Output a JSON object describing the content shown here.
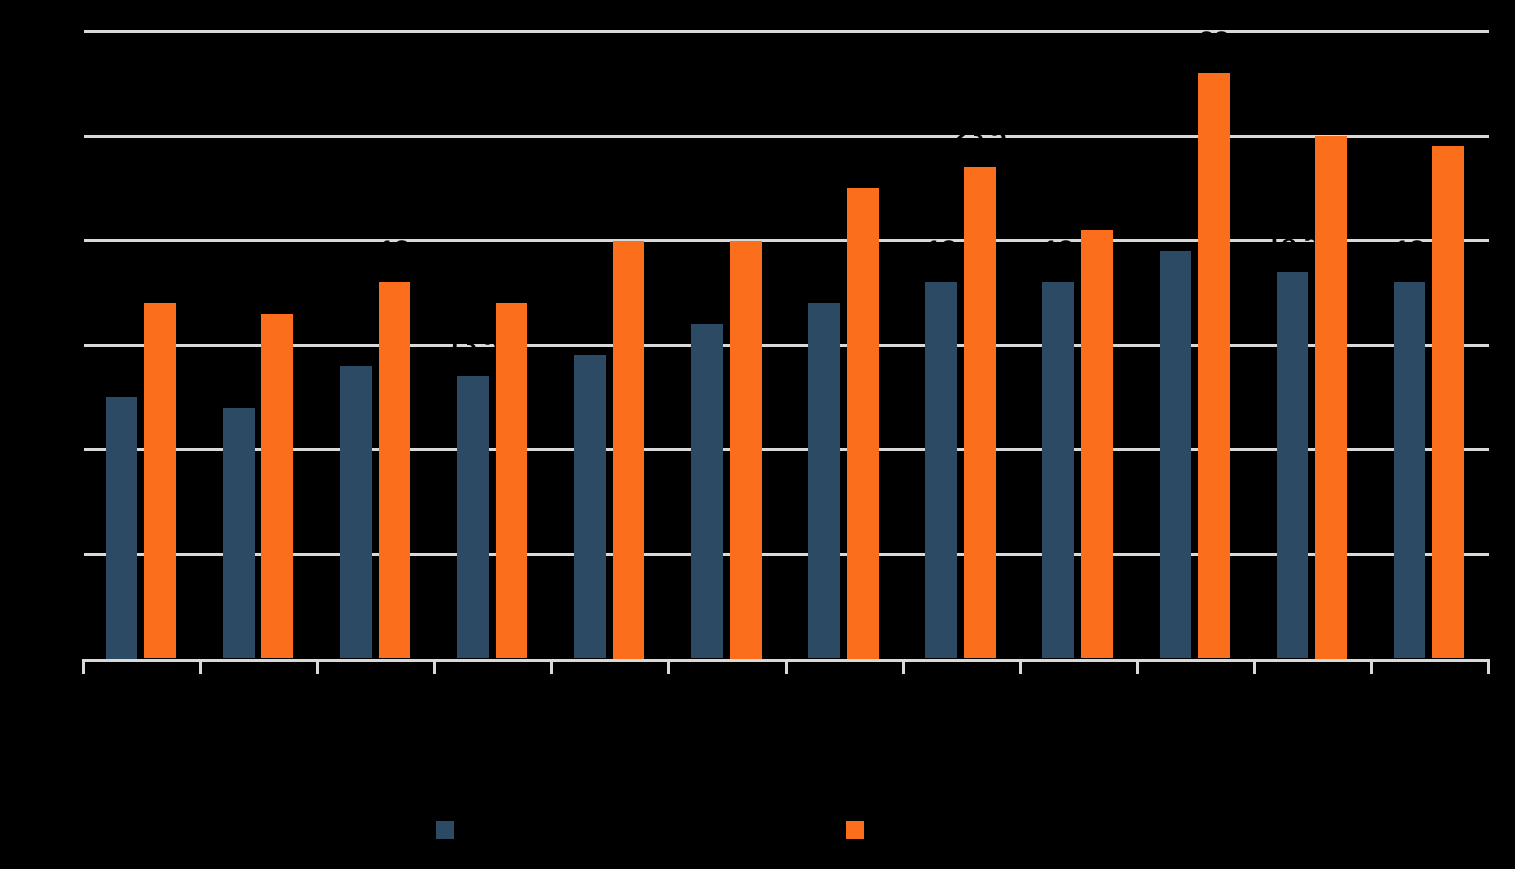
{
  "app": {
    "background_color": "#000000",
    "text_color": "#000000"
  },
  "chart_data": {
    "type": "bar",
    "title": "",
    "categories": [
      "",
      "",
      "",
      "",
      "",
      "",
      "",
      "",
      "",
      "",
      "",
      ""
    ],
    "series": [
      {
        "id": "blue-series",
        "name": "",
        "color": "#2D4A64",
        "values": [
          12.5,
          12,
          14,
          13.5,
          14.5,
          16,
          17,
          18,
          18,
          19.5,
          18.5,
          18
        ]
      },
      {
        "id": "orange-series",
        "name": "",
        "color": "#FA6E1C",
        "values": [
          17,
          16.5,
          18,
          17,
          20,
          20,
          22.5,
          23.5,
          20.5,
          28,
          25,
          24.5
        ]
      }
    ],
    "xlabel": "",
    "ylabel": "",
    "ylim": [
      0,
      30
    ],
    "y_tick_step": 5,
    "grid": "horizontal",
    "gridline_color": "#D9D9D9",
    "axis_line_color": "#D9D9D9",
    "tick_color": "#D9D9D9",
    "data_labels": "above-bars",
    "data_label_color": "#000000",
    "legend_position": "bottom"
  },
  "legend": {
    "items": [
      {
        "label": "",
        "color": "#2D4A64"
      },
      {
        "label": "",
        "color": "#FA6E1C"
      }
    ]
  }
}
